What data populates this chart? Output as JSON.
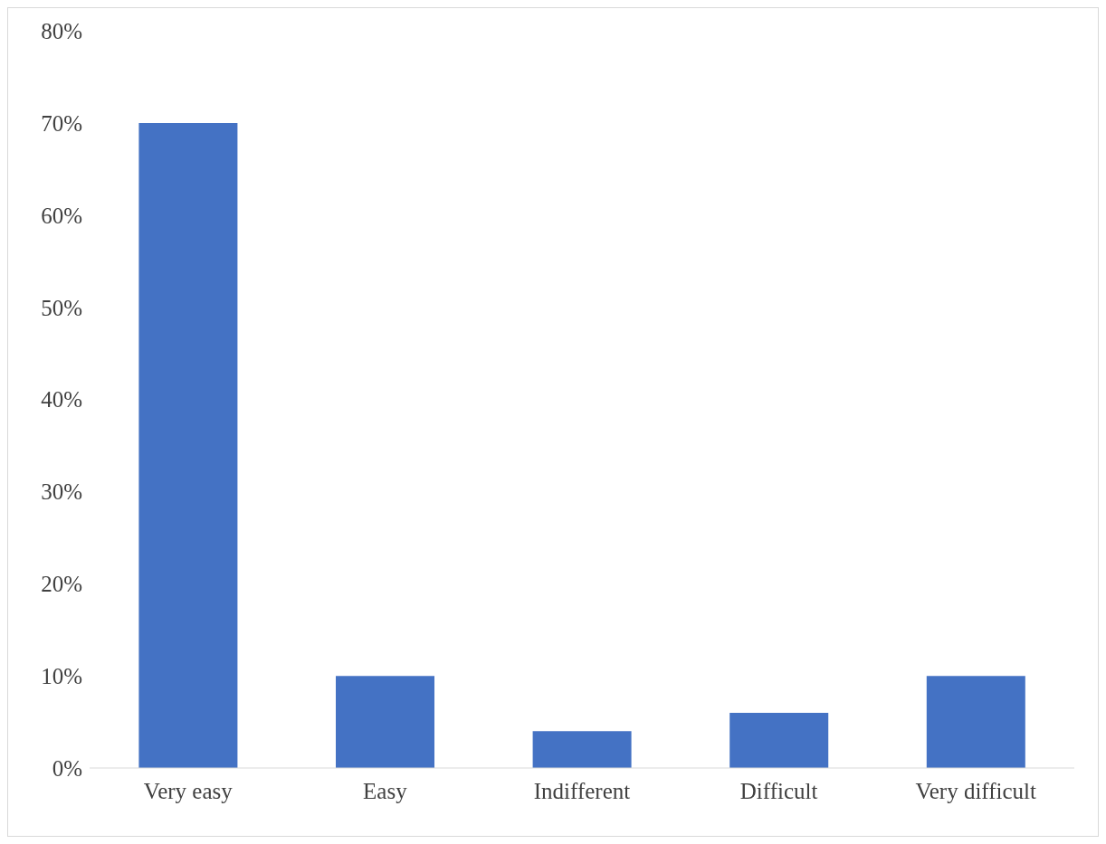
{
  "chart_data": {
    "type": "bar",
    "categories": [
      "Very easy",
      "Easy",
      "Indifferent",
      "Difficult",
      "Very difficult"
    ],
    "values": [
      70,
      10,
      4,
      6,
      10
    ],
    "color": "#4472c4",
    "ylim": [
      0,
      80
    ],
    "yticks": [
      {
        "value": 0,
        "label": "0%"
      },
      {
        "value": 10,
        "label": "10%"
      },
      {
        "value": 20,
        "label": "20%"
      },
      {
        "value": 30,
        "label": "30%"
      },
      {
        "value": 40,
        "label": "40%"
      },
      {
        "value": 50,
        "label": "50%"
      },
      {
        "value": 60,
        "label": "60%"
      },
      {
        "value": 70,
        "label": "70%"
      },
      {
        "value": 80,
        "label": "80%"
      }
    ],
    "grid": false,
    "legend": false
  }
}
